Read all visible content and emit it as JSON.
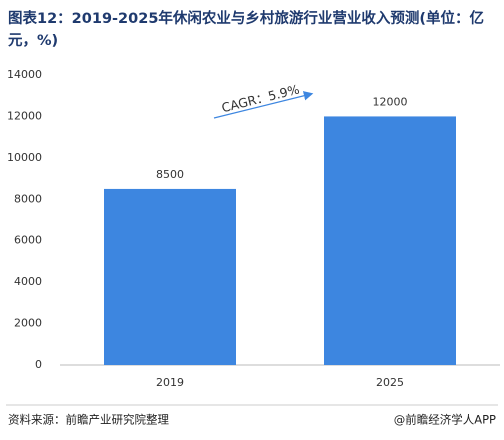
{
  "chart_data": {
    "type": "bar",
    "title": "图表12：2019-2025年休闲农业与乡村旅游行业营业收入预测(单位：亿元，%)",
    "categories": [
      "2019",
      "2025"
    ],
    "values": [
      8500,
      12000
    ],
    "color": "#3d86e0",
    "ylim": [
      0,
      14000
    ],
    "yticks": [
      0,
      2000,
      4000,
      6000,
      8000,
      10000,
      12000,
      14000
    ],
    "grid": false,
    "annotation": "CAGR：5.9%",
    "source": "资料来源：前瞻产业研究院整理",
    "credit": "@前瞻经济学人APP"
  }
}
